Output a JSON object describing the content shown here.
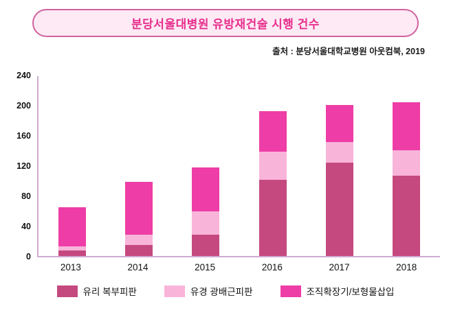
{
  "header": {
    "title": "분당서울대병원 유방재건술 시행 건수",
    "source": "출처 : 분당서울대학교병원 아웃컴북, 2019"
  },
  "colors": {
    "title_text": "#e72e8c",
    "title_border": "#d0619e",
    "title_fill": "#fdeaf5",
    "axis": "#cfaad2"
  },
  "chart_data": {
    "type": "bar",
    "stacked": true,
    "title": "분당서울대병원 유방재건술 시행 건수",
    "xlabel": "",
    "ylabel": "",
    "categories": [
      "2013",
      "2014",
      "2015",
      "2016",
      "2017",
      "2018"
    ],
    "series": [
      {
        "name": "유리 복부피판",
        "color": "#c5497f",
        "values": [
          7,
          15,
          28,
          101,
          124,
          106
        ]
      },
      {
        "name": "유경 광배근피판",
        "color": "#f9b4da",
        "values": [
          6,
          13,
          31,
          37,
          27,
          34
        ]
      },
      {
        "name": "조직확장기/보형물삽입",
        "color": "#ee3da6",
        "values": [
          52,
          70,
          58,
          54,
          49,
          64
        ]
      }
    ],
    "totals": [
      65,
      98,
      117,
      192,
      200,
      204
    ],
    "ylim": [
      0,
      240
    ],
    "yticks": [
      0,
      40,
      80,
      120,
      160,
      200,
      240
    ],
    "grid": false,
    "legend_position": "bottom"
  }
}
